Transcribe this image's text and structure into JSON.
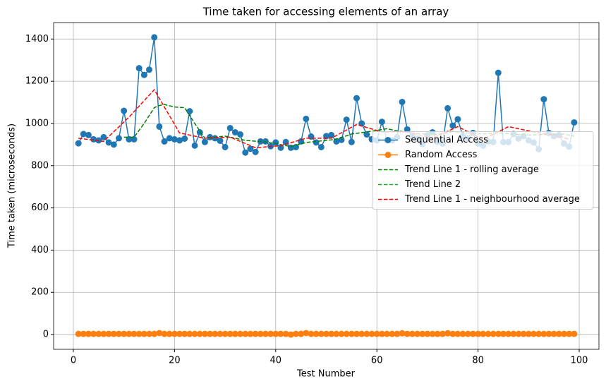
{
  "chart_data": {
    "type": "line",
    "title": "Time taken for accessing elements of an array",
    "x_label": "Test Number",
    "y_label": "Time taken (microseconds)",
    "xlim": [
      -3.9,
      103.9
    ],
    "ylim": [
      -70,
      1478
    ],
    "xticks": [
      0,
      20,
      40,
      60,
      80,
      100
    ],
    "yticks": [
      0,
      200,
      400,
      600,
      800,
      1000,
      1200,
      1400
    ],
    "grid": true,
    "legend": "center right",
    "series": [
      {
        "name": "Sequential Access",
        "color": "#1f77b4",
        "style": "solid",
        "marker": true,
        "x": [
          1,
          2,
          3,
          4,
          5,
          6,
          7,
          8,
          9,
          10,
          11,
          12,
          13,
          14,
          15,
          16,
          17,
          18,
          19,
          20,
          21,
          22,
          23,
          24,
          25,
          26,
          27,
          28,
          29,
          30,
          31,
          32,
          33,
          34,
          35,
          36,
          37,
          38,
          39,
          40,
          41,
          42,
          43,
          44,
          45,
          46,
          47,
          48,
          49,
          50,
          51,
          52,
          53,
          54,
          55,
          56,
          57,
          58,
          59,
          60,
          61,
          62,
          63,
          64,
          65,
          66,
          67,
          68,
          69,
          70,
          71,
          72,
          73,
          74,
          75,
          76,
          77,
          78,
          79,
          80,
          81,
          82,
          83,
          84,
          85,
          86,
          87,
          88,
          89,
          90,
          91,
          92,
          93,
          94,
          95,
          96,
          97,
          98,
          99
        ],
        "values": [
          906,
          950,
          945,
          925,
          920,
          935,
          910,
          900,
          930,
          1060,
          925,
          925,
          1262,
          1230,
          1255,
          1408,
          985,
          915,
          930,
          925,
          920,
          928,
          1058,
          895,
          958,
          912,
          935,
          930,
          918,
          888,
          978,
          958,
          948,
          862,
          880,
          865,
          915,
          915,
          892,
          910,
          885,
          912,
          885,
          888,
          915,
          1022,
          938,
          910,
          888,
          940,
          945,
          915,
          922,
          1018,
          912,
          1120,
          1000,
          948,
          925,
          920,
          1008,
          920,
          920,
          935,
          1102,
          972,
          938,
          928,
          902,
          945,
          958,
          912,
          905,
          1072,
          990,
          1020,
          940,
          930,
          955,
          905,
          895,
          915,
          912,
          1240,
          912,
          912,
          950,
          928,
          940,
          920,
          910,
          878,
          1115,
          955,
          940,
          945,
          905,
          890,
          1005
        ]
      },
      {
        "name": "Random Access",
        "color": "#ff7f0e",
        "style": "solid",
        "marker": true,
        "x": [
          1,
          2,
          3,
          4,
          5,
          6,
          7,
          8,
          9,
          10,
          11,
          12,
          13,
          14,
          15,
          16,
          17,
          18,
          19,
          20,
          21,
          22,
          23,
          24,
          25,
          26,
          27,
          28,
          29,
          30,
          31,
          32,
          33,
          34,
          35,
          36,
          37,
          38,
          39,
          40,
          41,
          42,
          43,
          44,
          45,
          46,
          47,
          48,
          49,
          50,
          51,
          52,
          53,
          54,
          55,
          56,
          57,
          58,
          59,
          60,
          61,
          62,
          63,
          64,
          65,
          66,
          67,
          68,
          69,
          70,
          71,
          72,
          73,
          74,
          75,
          76,
          77,
          78,
          79,
          80,
          81,
          82,
          83,
          84,
          85,
          86,
          87,
          88,
          89,
          90,
          91,
          92,
          93,
          94,
          95,
          96,
          97,
          98,
          99
        ],
        "values": [
          3,
          3,
          3,
          3,
          3,
          3,
          3,
          3,
          3,
          3,
          3,
          3,
          3,
          3,
          3,
          3,
          7,
          3,
          3,
          3,
          3,
          3,
          3,
          3,
          3,
          3,
          3,
          3,
          3,
          3,
          3,
          3,
          3,
          3,
          3,
          3,
          3,
          3,
          3,
          3,
          3,
          3,
          0,
          3,
          3,
          7,
          3,
          3,
          3,
          3,
          3,
          3,
          3,
          3,
          3,
          3,
          3,
          3,
          3,
          3,
          3,
          3,
          3,
          3,
          6,
          3,
          3,
          3,
          3,
          3,
          3,
          3,
          3,
          6,
          3,
          3,
          3,
          3,
          3,
          3,
          3,
          3,
          3,
          3,
          3,
          3,
          3,
          3,
          3,
          3,
          3,
          3,
          3,
          3,
          3,
          3,
          3,
          3,
          3
        ]
      },
      {
        "name": "Trend Line 1 - rolling average",
        "color": "#008000",
        "style": "dashed",
        "marker": false,
        "x": [
          10,
          12,
          14,
          16,
          17,
          18,
          20,
          22,
          24,
          26,
          30,
          34,
          38,
          40,
          43,
          46,
          48,
          52,
          55,
          58,
          62,
          64,
          67,
          70,
          72,
          75,
          78,
          80,
          84,
          87,
          90,
          94,
          97,
          99
        ],
        "values": [
          935,
          935,
          1000,
          1075,
          1085,
          1090,
          1078,
          1075,
          1000,
          930,
          940,
          920,
          912,
          905,
          890,
          910,
          915,
          925,
          950,
          960,
          975,
          965,
          955,
          950,
          948,
          962,
          955,
          950,
          955,
          950,
          945,
          948,
          950,
          940
        ]
      },
      {
        "name": "Trend Line 2",
        "color": "#2ca02c",
        "style": "dashed",
        "marker": false,
        "x": [],
        "values": []
      },
      {
        "name": "Trend Line 1 - neighbourhood average",
        "color": "#ff0000",
        "style": "dashed",
        "marker": false,
        "x": [
          1,
          6,
          11,
          16,
          21,
          26,
          31,
          36,
          41,
          46,
          51,
          56,
          61,
          66,
          71,
          76,
          81,
          86,
          91,
          96,
          98
        ],
        "values": [
          930,
          915,
          1030,
          1160,
          955,
          930,
          935,
          885,
          895,
          930,
          930,
          995,
          960,
          960,
          930,
          985,
          925,
          985,
          960,
          940,
          925
        ]
      }
    ]
  }
}
